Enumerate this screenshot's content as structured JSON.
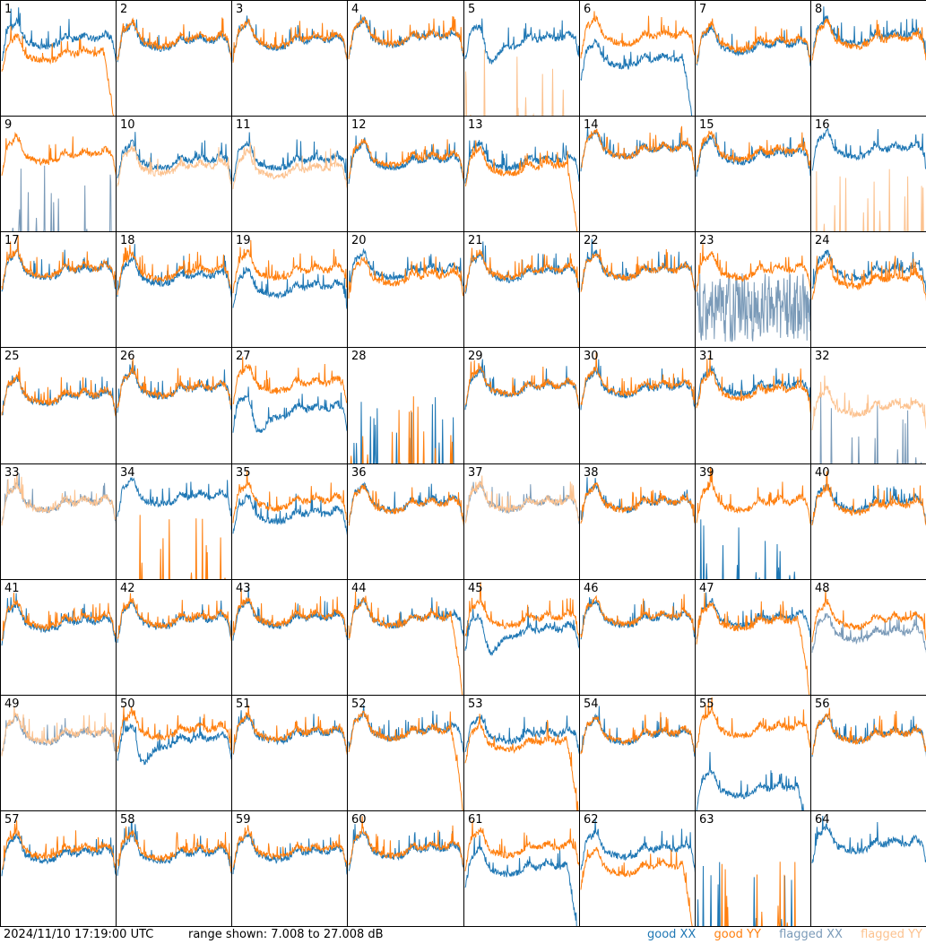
{
  "footer": {
    "timestamp": "2024/11/10 17:19:00 UTC",
    "range_text": "range shown: 7.008 to 27.008 dB"
  },
  "legend": {
    "good_xx": "good XX",
    "good_yy": "good YY",
    "flagged_xx": "flagged XX",
    "flagged_yy": "flagged YY"
  },
  "colors": {
    "good_xx": "#1f77b4",
    "good_yy": "#ff7f0e",
    "flagged_xx": "#7a9ab8",
    "flagged_yy": "#fcc28f"
  },
  "chart_data": {
    "type": "line",
    "ylim": [
      7.008,
      27.008
    ],
    "grid": false,
    "legend_position": "bottom-right",
    "rows": 8,
    "cols": 8,
    "panels": [
      {
        "id": "1",
        "xx": {
          "kind": "normal",
          "level": 20.5,
          "status": "good"
        },
        "yy": {
          "kind": "dropoff",
          "level": 18,
          "status": "good"
        }
      },
      {
        "id": "2",
        "xx": {
          "kind": "normal",
          "level": 20.2,
          "status": "good"
        },
        "yy": {
          "kind": "normal",
          "level": 20.5,
          "status": "good"
        }
      },
      {
        "id": "3",
        "xx": {
          "kind": "normal",
          "level": 20.3,
          "status": "good"
        },
        "yy": {
          "kind": "normal",
          "level": 20.5,
          "status": "good"
        }
      },
      {
        "id": "4",
        "xx": {
          "kind": "normal",
          "level": 20.8,
          "status": "good"
        },
        "yy": {
          "kind": "normal",
          "level": 21,
          "status": "good"
        }
      },
      {
        "id": "5",
        "xx": {
          "kind": "dip",
          "level": 20.5,
          "status": "good"
        },
        "yy": {
          "kind": "spikes",
          "level": 7,
          "status": "flagged"
        }
      },
      {
        "id": "6",
        "xx": {
          "kind": "dropoff",
          "level": 17,
          "status": "good"
        },
        "yy": {
          "kind": "normal",
          "level": 21,
          "status": "good"
        }
      },
      {
        "id": "7",
        "xx": {
          "kind": "normal",
          "level": 19.5,
          "status": "good"
        },
        "yy": {
          "kind": "normal",
          "level": 20,
          "status": "good"
        }
      },
      {
        "id": "8",
        "xx": {
          "kind": "normal",
          "level": 21,
          "status": "good"
        },
        "yy": {
          "kind": "normal",
          "level": 20.5,
          "status": "good"
        }
      },
      {
        "id": "9",
        "xx": {
          "kind": "spikes",
          "level": 7,
          "status": "flagged"
        },
        "yy": {
          "kind": "normal",
          "level": 20.5,
          "status": "good"
        }
      },
      {
        "id": "10",
        "xx": {
          "kind": "normal",
          "level": 19.5,
          "status": "good"
        },
        "yy": {
          "kind": "normal",
          "level": 18.5,
          "status": "flagged"
        }
      },
      {
        "id": "11",
        "xx": {
          "kind": "normal",
          "level": 19.5,
          "status": "good"
        },
        "yy": {
          "kind": "normal",
          "level": 18,
          "status": "flagged"
        }
      },
      {
        "id": "12",
        "xx": {
          "kind": "normal",
          "level": 19.5,
          "status": "good"
        },
        "yy": {
          "kind": "normal",
          "level": 20,
          "status": "good"
        }
      },
      {
        "id": "13",
        "xx": {
          "kind": "normal",
          "level": 19.5,
          "status": "good"
        },
        "yy": {
          "kind": "dropoff",
          "level": 18.5,
          "status": "good"
        }
      },
      {
        "id": "14",
        "xx": {
          "kind": "normal",
          "level": 21.5,
          "status": "good"
        },
        "yy": {
          "kind": "normal",
          "level": 21.5,
          "status": "good"
        }
      },
      {
        "id": "15",
        "xx": {
          "kind": "normal",
          "level": 20.5,
          "status": "good"
        },
        "yy": {
          "kind": "normal",
          "level": 21,
          "status": "good"
        }
      },
      {
        "id": "16",
        "xx": {
          "kind": "normal",
          "level": 21.5,
          "status": "good"
        },
        "yy": {
          "kind": "spikes",
          "level": 7,
          "status": "flagged"
        }
      },
      {
        "id": "17",
        "xx": {
          "kind": "normal",
          "level": 20.5,
          "status": "good"
        },
        "yy": {
          "kind": "normal",
          "level": 20.8,
          "status": "good"
        }
      },
      {
        "id": "18",
        "xx": {
          "kind": "normal",
          "level": 19.5,
          "status": "good"
        },
        "yy": {
          "kind": "normal",
          "level": 20.3,
          "status": "good"
        }
      },
      {
        "id": "19",
        "xx": {
          "kind": "normal",
          "level": 17.5,
          "status": "good"
        },
        "yy": {
          "kind": "normal",
          "level": 20.5,
          "status": "good"
        }
      },
      {
        "id": "20",
        "xx": {
          "kind": "normal",
          "level": 20.5,
          "status": "good"
        },
        "yy": {
          "kind": "normal",
          "level": 19.5,
          "status": "good"
        }
      },
      {
        "id": "21",
        "xx": {
          "kind": "normal",
          "level": 20.2,
          "status": "good"
        },
        "yy": {
          "kind": "normal",
          "level": 20.5,
          "status": "good"
        }
      },
      {
        "id": "22",
        "xx": {
          "kind": "normal",
          "level": 20.5,
          "status": "good"
        },
        "yy": {
          "kind": "normal",
          "level": 20.5,
          "status": "good"
        }
      },
      {
        "id": "23",
        "xx": {
          "kind": "noisy",
          "level": 14,
          "status": "flagged"
        },
        "yy": {
          "kind": "normal",
          "level": 20.5,
          "status": "good"
        }
      },
      {
        "id": "24",
        "xx": {
          "kind": "normal",
          "level": 20.5,
          "status": "good"
        },
        "yy": {
          "kind": "normal",
          "level": 19,
          "status": "good"
        }
      },
      {
        "id": "25",
        "xx": {
          "kind": "normal",
          "level": 18.8,
          "status": "good"
        },
        "yy": {
          "kind": "normal",
          "level": 19,
          "status": "good"
        }
      },
      {
        "id": "26",
        "xx": {
          "kind": "normal",
          "level": 20,
          "status": "good"
        },
        "yy": {
          "kind": "normal",
          "level": 20.2,
          "status": "good"
        }
      },
      {
        "id": "27",
        "xx": {
          "kind": "dip",
          "level": 16.5,
          "status": "good"
        },
        "yy": {
          "kind": "normal",
          "level": 21,
          "status": "good"
        }
      },
      {
        "id": "28",
        "xx": {
          "kind": "spikes",
          "level": 7,
          "status": "good"
        },
        "yy": {
          "kind": "spikes",
          "level": 7,
          "status": "good"
        }
      },
      {
        "id": "29",
        "xx": {
          "kind": "normal",
          "level": 20.3,
          "status": "good"
        },
        "yy": {
          "kind": "normal",
          "level": 20.5,
          "status": "good"
        }
      },
      {
        "id": "30",
        "xx": {
          "kind": "normal",
          "level": 20.2,
          "status": "good"
        },
        "yy": {
          "kind": "normal",
          "level": 20.5,
          "status": "good"
        }
      },
      {
        "id": "31",
        "xx": {
          "kind": "normal",
          "level": 20.5,
          "status": "good"
        },
        "yy": {
          "kind": "normal",
          "level": 19.8,
          "status": "good"
        }
      },
      {
        "id": "32",
        "xx": {
          "kind": "spikes",
          "level": 7,
          "status": "flagged"
        },
        "yy": {
          "kind": "normal",
          "level": 17,
          "status": "flagged"
        }
      },
      {
        "id": "33",
        "xx": {
          "kind": "normal",
          "level": 20.5,
          "status": "flagged"
        },
        "yy": {
          "kind": "normal",
          "level": 20.5,
          "status": "flagged"
        }
      },
      {
        "id": "34",
        "xx": {
          "kind": "normal",
          "level": 21.5,
          "status": "good"
        },
        "yy": {
          "kind": "spikes",
          "level": 7,
          "status": "good"
        }
      },
      {
        "id": "35",
        "xx": {
          "kind": "normal",
          "level": 18.5,
          "status": "good"
        },
        "yy": {
          "kind": "normal",
          "level": 20.8,
          "status": "good"
        }
      },
      {
        "id": "36",
        "xx": {
          "kind": "normal",
          "level": 20.5,
          "status": "good"
        },
        "yy": {
          "kind": "normal",
          "level": 20.3,
          "status": "good"
        }
      },
      {
        "id": "37",
        "xx": {
          "kind": "normal",
          "level": 20.5,
          "status": "flagged"
        },
        "yy": {
          "kind": "normal",
          "level": 20.5,
          "status": "flagged"
        }
      },
      {
        "id": "38",
        "xx": {
          "kind": "normal",
          "level": 20.5,
          "status": "good"
        },
        "yy": {
          "kind": "normal",
          "level": 20.5,
          "status": "good"
        }
      },
      {
        "id": "39",
        "xx": {
          "kind": "spikes",
          "level": 7,
          "status": "good"
        },
        "yy": {
          "kind": "normal",
          "level": 20.5,
          "status": "good"
        }
      },
      {
        "id": "40",
        "xx": {
          "kind": "normal",
          "level": 20.5,
          "status": "good"
        },
        "yy": {
          "kind": "normal",
          "level": 20,
          "status": "good"
        }
      },
      {
        "id": "41",
        "xx": {
          "kind": "normal",
          "level": 19.8,
          "status": "good"
        },
        "yy": {
          "kind": "normal",
          "level": 20.3,
          "status": "good"
        }
      },
      {
        "id": "42",
        "xx": {
          "kind": "normal",
          "level": 20.2,
          "status": "good"
        },
        "yy": {
          "kind": "normal",
          "level": 20.5,
          "status": "good"
        }
      },
      {
        "id": "43",
        "xx": {
          "kind": "normal",
          "level": 20.5,
          "status": "good"
        },
        "yy": {
          "kind": "normal",
          "level": 20.8,
          "status": "good"
        }
      },
      {
        "id": "44",
        "xx": {
          "kind": "normal",
          "level": 20.5,
          "status": "good"
        },
        "yy": {
          "kind": "dropoff",
          "level": 20.5,
          "status": "good"
        }
      },
      {
        "id": "45",
        "xx": {
          "kind": "dip",
          "level": 18.5,
          "status": "good"
        },
        "yy": {
          "kind": "normal",
          "level": 20.5,
          "status": "good"
        }
      },
      {
        "id": "46",
        "xx": {
          "kind": "normal",
          "level": 20.5,
          "status": "good"
        },
        "yy": {
          "kind": "normal",
          "level": 20.8,
          "status": "good"
        }
      },
      {
        "id": "47",
        "xx": {
          "kind": "normal",
          "level": 20.5,
          "status": "good"
        },
        "yy": {
          "kind": "dropoff",
          "level": 20,
          "status": "good"
        }
      },
      {
        "id": "48",
        "xx": {
          "kind": "normal",
          "level": 18,
          "status": "flagged"
        },
        "yy": {
          "kind": "normal",
          "level": 20.3,
          "status": "good"
        }
      },
      {
        "id": "49",
        "xx": {
          "kind": "normal",
          "level": 20.3,
          "status": "flagged"
        },
        "yy": {
          "kind": "normal",
          "level": 20.5,
          "status": "flagged"
        }
      },
      {
        "id": "50",
        "xx": {
          "kind": "dip",
          "level": 19.5,
          "status": "good"
        },
        "yy": {
          "kind": "normal",
          "level": 21.2,
          "status": "good"
        }
      },
      {
        "id": "51",
        "xx": {
          "kind": "normal",
          "level": 20.5,
          "status": "good"
        },
        "yy": {
          "kind": "normal",
          "level": 20.8,
          "status": "good"
        }
      },
      {
        "id": "52",
        "xx": {
          "kind": "normal",
          "level": 21,
          "status": "good"
        },
        "yy": {
          "kind": "dropoff",
          "level": 21,
          "status": "good"
        }
      },
      {
        "id": "53",
        "xx": {
          "kind": "normal",
          "level": 20.5,
          "status": "good"
        },
        "yy": {
          "kind": "dropoff",
          "level": 19,
          "status": "good"
        }
      },
      {
        "id": "54",
        "xx": {
          "kind": "normal",
          "level": 20.3,
          "status": "good"
        },
        "yy": {
          "kind": "normal",
          "level": 20.5,
          "status": "good"
        }
      },
      {
        "id": "55",
        "xx": {
          "kind": "dropoff",
          "level": 11,
          "status": "good"
        },
        "yy": {
          "kind": "normal",
          "level": 21.5,
          "status": "good"
        }
      },
      {
        "id": "56",
        "xx": {
          "kind": "normal",
          "level": 20.5,
          "status": "good"
        },
        "yy": {
          "kind": "normal",
          "level": 20.5,
          "status": "good"
        }
      },
      {
        "id": "57",
        "xx": {
          "kind": "normal",
          "level": 19.8,
          "status": "good"
        },
        "yy": {
          "kind": "normal",
          "level": 20.5,
          "status": "good"
        }
      },
      {
        "id": "58",
        "xx": {
          "kind": "normal",
          "level": 19.8,
          "status": "good"
        },
        "yy": {
          "kind": "normal",
          "level": 20.3,
          "status": "good"
        }
      },
      {
        "id": "59",
        "xx": {
          "kind": "normal",
          "level": 20,
          "status": "good"
        },
        "yy": {
          "kind": "normal",
          "level": 20.5,
          "status": "good"
        }
      },
      {
        "id": "60",
        "xx": {
          "kind": "normal",
          "level": 20.5,
          "status": "good"
        },
        "yy": {
          "kind": "normal",
          "level": 20.8,
          "status": "good"
        }
      },
      {
        "id": "61",
        "xx": {
          "kind": "dropoff",
          "level": 17.5,
          "status": "good"
        },
        "yy": {
          "kind": "normal",
          "level": 20.8,
          "status": "good"
        }
      },
      {
        "id": "62",
        "xx": {
          "kind": "normal",
          "level": 20.5,
          "status": "good"
        },
        "yy": {
          "kind": "dropoff",
          "level": 17.5,
          "status": "good"
        }
      },
      {
        "id": "63",
        "xx": {
          "kind": "spikes",
          "level": 7,
          "status": "good"
        },
        "yy": {
          "kind": "spikes",
          "level": 7,
          "status": "good"
        }
      },
      {
        "id": "64",
        "xx": {
          "kind": "normal",
          "level": 21.5,
          "status": "good"
        },
        "yy": {
          "kind": "none",
          "level": 0,
          "status": "good"
        }
      }
    ]
  }
}
